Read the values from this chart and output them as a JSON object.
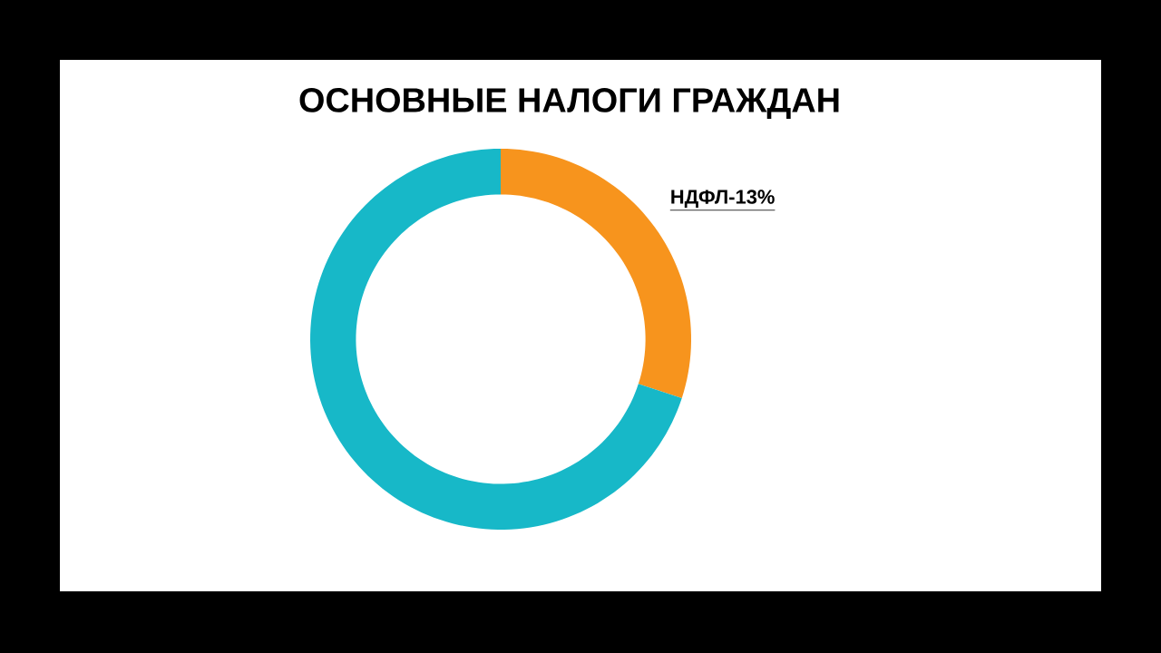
{
  "chart_data": {
    "type": "donut",
    "title": "ОСНОВНЫЕ НАЛОГИ ГРАЖДАН",
    "categories": [
      "НДФЛ-13%",
      null
    ],
    "values": [
      30,
      70
    ],
    "colors": [
      "#f7941d",
      "#17b8c8"
    ]
  }
}
